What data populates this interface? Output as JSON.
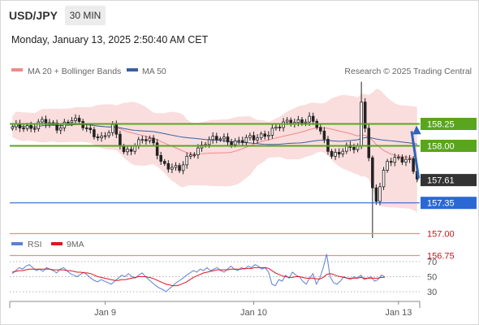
{
  "header": {
    "symbol": "USD/JPY",
    "timeframe": "30 MIN",
    "datetime": "Monday, January 13, 2025 2:50:40 AM CET"
  },
  "colors": {
    "bollinger_fill": "#f9d7d7",
    "ma20": "#f08a8a",
    "ma50": "#3a5fa0",
    "resistance": "#5aa51e",
    "support": "#2b68d4",
    "target": "#f08a8a",
    "current": "#333333",
    "rsi": "#5b7fd6",
    "rsi_ma": "#e0141e",
    "arrow": "#2f63b5"
  },
  "chart_data": [
    {
      "type": "candlestick",
      "legend": [
        {
          "label": "MA 20 + Bollinger Bands",
          "color": "#f08a8a"
        },
        {
          "label": "MA 50",
          "color": "#3a5fa0"
        }
      ],
      "watermark": "Research © 2025 Trading Central",
      "ylim": [
        156.6,
        158.75
      ],
      "x_ticks": [
        {
          "label": "Jan 9",
          "bar": 25
        },
        {
          "label": "Jan 10",
          "bar": 65
        },
        {
          "label": "Jan 13",
          "bar": 104
        }
      ],
      "bar_count": 110,
      "ohlc": [],
      "levels": [
        {
          "value": 158.25,
          "label": "158.25",
          "kind": "resistance"
        },
        {
          "value": 158.0,
          "label": "158.00",
          "kind": "resistance"
        },
        {
          "value": 157.61,
          "label": "157.61",
          "kind": "current"
        },
        {
          "value": 157.35,
          "label": "157.35",
          "kind": "support"
        },
        {
          "value": 157.0,
          "label": "157.00",
          "kind": "target"
        },
        {
          "value": 156.75,
          "label": "156.75",
          "kind": "target"
        }
      ],
      "forecast_arrow": {
        "from": 157.61,
        "to": 158.25,
        "direction": "up"
      }
    },
    {
      "type": "line",
      "legend": [
        {
          "label": "RSI",
          "color": "#5b7fd6"
        },
        {
          "label": "9MA",
          "color": "#e0141e"
        }
      ],
      "ylim": [
        20,
        80
      ],
      "y_ticks": [
        70,
        50,
        30
      ],
      "series": [
        {
          "name": "RSI",
          "values": [
            54,
            58,
            62,
            60,
            64,
            66,
            62,
            58,
            60,
            57,
            62,
            60,
            58,
            55,
            60,
            62,
            58,
            54,
            52,
            50,
            53,
            56,
            52,
            48,
            45,
            43,
            46,
            44,
            42,
            40,
            44,
            48,
            52,
            50,
            54,
            50,
            48,
            52,
            55,
            50,
            46,
            42,
            38,
            35,
            33,
            30,
            34,
            38,
            42,
            45,
            48,
            52,
            55,
            58,
            56,
            60,
            58,
            62,
            58,
            60,
            62,
            58,
            56,
            60,
            64,
            60,
            58,
            62,
            60,
            64,
            62,
            66,
            64,
            60,
            62,
            56,
            40,
            38,
            46,
            44,
            52,
            48,
            56,
            52,
            50,
            44,
            40,
            48,
            54,
            40,
            48,
            62,
            80,
            50,
            42,
            40,
            44,
            50,
            48,
            46,
            50,
            48,
            52,
            46,
            48,
            50,
            44,
            46,
            52,
            50
          ]
        },
        {
          "name": "9MA",
          "values": [
            56,
            57,
            58,
            58,
            59,
            60,
            60,
            60,
            60,
            60,
            60,
            60,
            59,
            59,
            59,
            59,
            58,
            58,
            57,
            56,
            56,
            55,
            55,
            54,
            52,
            50,
            49,
            48,
            47,
            46,
            45,
            45,
            46,
            46,
            47,
            48,
            49,
            50,
            50,
            50,
            49,
            48,
            46,
            44,
            42,
            40,
            39,
            38,
            38,
            39,
            41,
            43,
            46,
            49,
            51,
            53,
            55,
            56,
            57,
            58,
            59,
            59,
            59,
            59,
            60,
            60,
            60,
            60,
            61,
            61,
            61,
            62,
            62,
            62,
            62,
            61,
            58,
            55,
            53,
            51,
            50,
            49,
            49,
            50,
            50,
            49,
            48,
            48,
            48,
            47,
            47,
            49,
            53,
            54,
            53,
            51,
            50,
            49,
            48,
            48,
            48,
            48,
            49,
            48,
            48,
            48,
            48,
            48,
            49,
            49
          ]
        }
      ]
    }
  ]
}
